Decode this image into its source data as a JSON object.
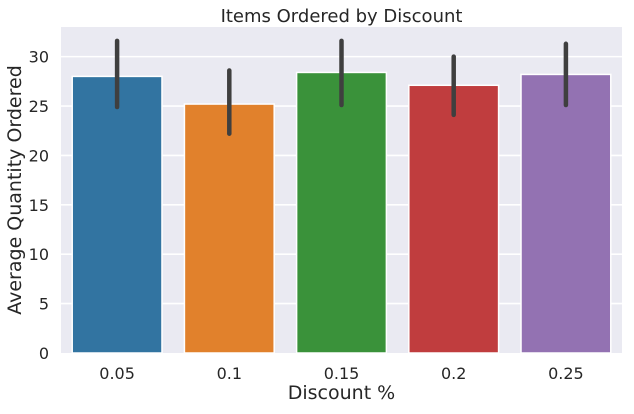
{
  "chart_data": {
    "type": "bar",
    "title": "Items Ordered by Discount",
    "xlabel": "Discount %",
    "ylabel": "Average Quantity Ordered",
    "categories": [
      "0.05",
      "0.1",
      "0.15",
      "0.2",
      "0.25"
    ],
    "values": [
      28.0,
      25.2,
      28.4,
      27.1,
      28.2
    ],
    "error_low": [
      24.9,
      22.2,
      25.1,
      24.1,
      25.1
    ],
    "error_high": [
      31.6,
      28.6,
      31.6,
      30.0,
      31.3
    ],
    "ylim": [
      0,
      33
    ],
    "yticks": [
      0,
      5,
      10,
      15,
      20,
      25,
      30
    ],
    "grid": true,
    "colors": [
      "#3274a1",
      "#e1812c",
      "#3a923a",
      "#c03d3e",
      "#9372b2"
    ],
    "background": "#eaeaf2",
    "error_color": "#3f3f3f"
  }
}
